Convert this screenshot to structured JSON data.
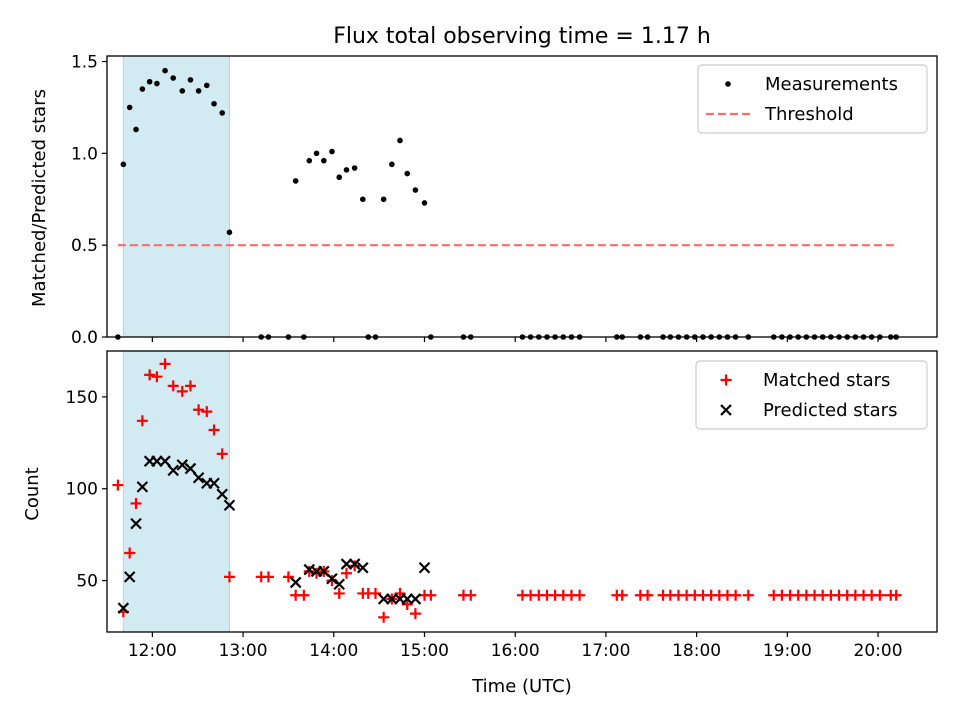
{
  "chart_data": [
    {
      "type": "scatter",
      "title": "Flux total observing time = 1.17 h",
      "xlabel": "",
      "ylabel": "Matched/Predicted stars",
      "xlim": [
        11.5,
        20.65
      ],
      "ylim": [
        0,
        1.53
      ],
      "yticks": [
        0.0,
        0.5,
        1.0,
        1.5
      ],
      "ytick_labels": [
        "0.0",
        "0.5",
        "1.0",
        "1.5"
      ],
      "shaded_span": {
        "x_start": 11.68,
        "x_end": 12.85,
        "color": "#add8e6"
      },
      "legend_position": "upper right",
      "series": [
        {
          "name": "Measurements",
          "style": "dot",
          "color": "#000000",
          "points": [
            [
              11.62,
              0.0
            ],
            [
              11.68,
              0.94
            ],
            [
              11.75,
              1.25
            ],
            [
              11.82,
              1.13
            ],
            [
              11.89,
              1.35
            ],
            [
              11.97,
              1.39
            ],
            [
              12.05,
              1.38
            ],
            [
              12.14,
              1.45
            ],
            [
              12.23,
              1.41
            ],
            [
              12.33,
              1.34
            ],
            [
              12.42,
              1.4
            ],
            [
              12.51,
              1.34
            ],
            [
              12.6,
              1.37
            ],
            [
              12.68,
              1.27
            ],
            [
              12.77,
              1.22
            ],
            [
              12.85,
              0.57
            ],
            [
              13.2,
              0.0
            ],
            [
              13.28,
              0.0
            ],
            [
              13.5,
              0.0
            ],
            [
              13.58,
              0.85
            ],
            [
              13.67,
              0.0
            ],
            [
              13.73,
              0.96
            ],
            [
              13.81,
              1.0
            ],
            [
              13.89,
              0.96
            ],
            [
              13.98,
              1.01
            ],
            [
              14.06,
              0.87
            ],
            [
              14.14,
              0.91
            ],
            [
              14.23,
              0.92
            ],
            [
              14.32,
              0.75
            ],
            [
              14.38,
              0.0
            ],
            [
              14.46,
              0.0
            ],
            [
              14.55,
              0.75
            ],
            [
              14.64,
              0.94
            ],
            [
              14.73,
              1.07
            ],
            [
              14.81,
              0.89
            ],
            [
              14.9,
              0.8
            ],
            [
              15.0,
              0.73
            ],
            [
              15.07,
              0.0
            ],
            [
              15.43,
              0.0
            ],
            [
              15.51,
              0.0
            ],
            [
              16.08,
              0.0
            ],
            [
              16.17,
              0.0
            ],
            [
              16.26,
              0.0
            ],
            [
              16.35,
              0.0
            ],
            [
              16.44,
              0.0
            ],
            [
              16.53,
              0.0
            ],
            [
              16.62,
              0.0
            ],
            [
              16.71,
              0.0
            ],
            [
              17.12,
              0.0
            ],
            [
              17.18,
              0.0
            ],
            [
              17.38,
              0.0
            ],
            [
              17.46,
              0.0
            ],
            [
              17.63,
              0.0
            ],
            [
              17.71,
              0.0
            ],
            [
              17.8,
              0.0
            ],
            [
              17.89,
              0.0
            ],
            [
              17.98,
              0.0
            ],
            [
              18.07,
              0.0
            ],
            [
              18.16,
              0.0
            ],
            [
              18.25,
              0.0
            ],
            [
              18.34,
              0.0
            ],
            [
              18.43,
              0.0
            ],
            [
              18.57,
              0.0
            ],
            [
              18.85,
              0.0
            ],
            [
              18.94,
              0.0
            ],
            [
              19.03,
              0.0
            ],
            [
              19.12,
              0.0
            ],
            [
              19.21,
              0.0
            ],
            [
              19.3,
              0.0
            ],
            [
              19.39,
              0.0
            ],
            [
              19.48,
              0.0
            ],
            [
              19.57,
              0.0
            ],
            [
              19.66,
              0.0
            ],
            [
              19.75,
              0.0
            ],
            [
              19.84,
              0.0
            ],
            [
              19.93,
              0.0
            ],
            [
              20.02,
              0.0
            ],
            [
              20.14,
              0.0
            ],
            [
              20.2,
              0.0
            ]
          ]
        },
        {
          "name": "Threshold",
          "style": "dashed-line",
          "color": "#ff6b6b",
          "points": [
            [
              11.62,
              0.5
            ],
            [
              20.22,
              0.5
            ]
          ]
        }
      ]
    },
    {
      "type": "scatter",
      "title": "",
      "xlabel": "Time (UTC)",
      "ylabel": "Count",
      "xlim": [
        11.5,
        20.65
      ],
      "ylim": [
        22,
        175
      ],
      "yticks": [
        50,
        100,
        150
      ],
      "ytick_labels": [
        "50",
        "100",
        "150"
      ],
      "xticks": [
        12,
        13,
        14,
        15,
        16,
        17,
        18,
        19,
        20
      ],
      "xtick_labels": [
        "12:00",
        "13:00",
        "14:00",
        "15:00",
        "16:00",
        "17:00",
        "18:00",
        "19:00",
        "20:00"
      ],
      "shaded_span": {
        "x_start": 11.68,
        "x_end": 12.85,
        "color": "#add8e6"
      },
      "legend_position": "upper right",
      "series": [
        {
          "name": "Matched stars",
          "style": "plus",
          "color": "#ff0000",
          "points": [
            [
              11.62,
              102
            ],
            [
              11.68,
              33
            ],
            [
              11.75,
              65
            ],
            [
              11.82,
              92
            ],
            [
              11.89,
              137
            ],
            [
              11.97,
              162
            ],
            [
              12.05,
              161
            ],
            [
              12.14,
              168
            ],
            [
              12.23,
              156
            ],
            [
              12.33,
              153
            ],
            [
              12.42,
              156
            ],
            [
              12.51,
              143
            ],
            [
              12.6,
              142
            ],
            [
              12.68,
              132
            ],
            [
              12.77,
              119
            ],
            [
              12.85,
              52
            ],
            [
              13.2,
              52
            ],
            [
              13.28,
              52
            ],
            [
              13.5,
              52
            ],
            [
              13.58,
              42
            ],
            [
              13.67,
              42
            ],
            [
              13.73,
              55
            ],
            [
              13.81,
              54
            ],
            [
              13.89,
              55
            ],
            [
              13.98,
              50
            ],
            [
              14.06,
              43
            ],
            [
              14.14,
              54
            ],
            [
              14.23,
              58
            ],
            [
              14.32,
              43
            ],
            [
              14.38,
              43
            ],
            [
              14.46,
              43
            ],
            [
              14.55,
              30
            ],
            [
              14.64,
              40
            ],
            [
              14.73,
              43
            ],
            [
              14.81,
              37
            ],
            [
              14.9,
              32
            ],
            [
              15.0,
              42
            ],
            [
              15.07,
              42
            ],
            [
              15.43,
              42
            ],
            [
              15.51,
              42
            ],
            [
              16.08,
              42
            ],
            [
              16.17,
              42
            ],
            [
              16.26,
              42
            ],
            [
              16.35,
              42
            ],
            [
              16.44,
              42
            ],
            [
              16.53,
              42
            ],
            [
              16.62,
              42
            ],
            [
              16.71,
              42
            ],
            [
              17.12,
              42
            ],
            [
              17.18,
              42
            ],
            [
              17.38,
              42
            ],
            [
              17.46,
              42
            ],
            [
              17.63,
              42
            ],
            [
              17.71,
              42
            ],
            [
              17.8,
              42
            ],
            [
              17.89,
              42
            ],
            [
              17.98,
              42
            ],
            [
              18.07,
              42
            ],
            [
              18.16,
              42
            ],
            [
              18.25,
              42
            ],
            [
              18.34,
              42
            ],
            [
              18.43,
              42
            ],
            [
              18.57,
              42
            ],
            [
              18.85,
              42
            ],
            [
              18.94,
              42
            ],
            [
              19.03,
              42
            ],
            [
              19.12,
              42
            ],
            [
              19.21,
              42
            ],
            [
              19.3,
              42
            ],
            [
              19.39,
              42
            ],
            [
              19.48,
              42
            ],
            [
              19.57,
              42
            ],
            [
              19.66,
              42
            ],
            [
              19.75,
              42
            ],
            [
              19.84,
              42
            ],
            [
              19.93,
              42
            ],
            [
              20.02,
              42
            ],
            [
              20.14,
              42
            ],
            [
              20.2,
              42
            ]
          ]
        },
        {
          "name": "Predicted stars",
          "style": "x",
          "color": "#000000",
          "points": [
            [
              11.68,
              35
            ],
            [
              11.75,
              52
            ],
            [
              11.82,
              81
            ],
            [
              11.89,
              101
            ],
            [
              11.97,
              115
            ],
            [
              12.05,
              115
            ],
            [
              12.14,
              115
            ],
            [
              12.23,
              110
            ],
            [
              12.33,
              113
            ],
            [
              12.42,
              111
            ],
            [
              12.51,
              106
            ],
            [
              12.6,
              103
            ],
            [
              12.68,
              103
            ],
            [
              12.77,
              97
            ],
            [
              12.85,
              91
            ],
            [
              13.58,
              49
            ],
            [
              13.73,
              56
            ],
            [
              13.81,
              55
            ],
            [
              13.89,
              55
            ],
            [
              13.98,
              51
            ],
            [
              14.06,
              48
            ],
            [
              14.14,
              59
            ],
            [
              14.23,
              59
            ],
            [
              14.32,
              57
            ],
            [
              14.55,
              40
            ],
            [
              14.64,
              40
            ],
            [
              14.73,
              40
            ],
            [
              14.81,
              40
            ],
            [
              14.9,
              40
            ],
            [
              15.0,
              57
            ]
          ]
        }
      ]
    }
  ]
}
